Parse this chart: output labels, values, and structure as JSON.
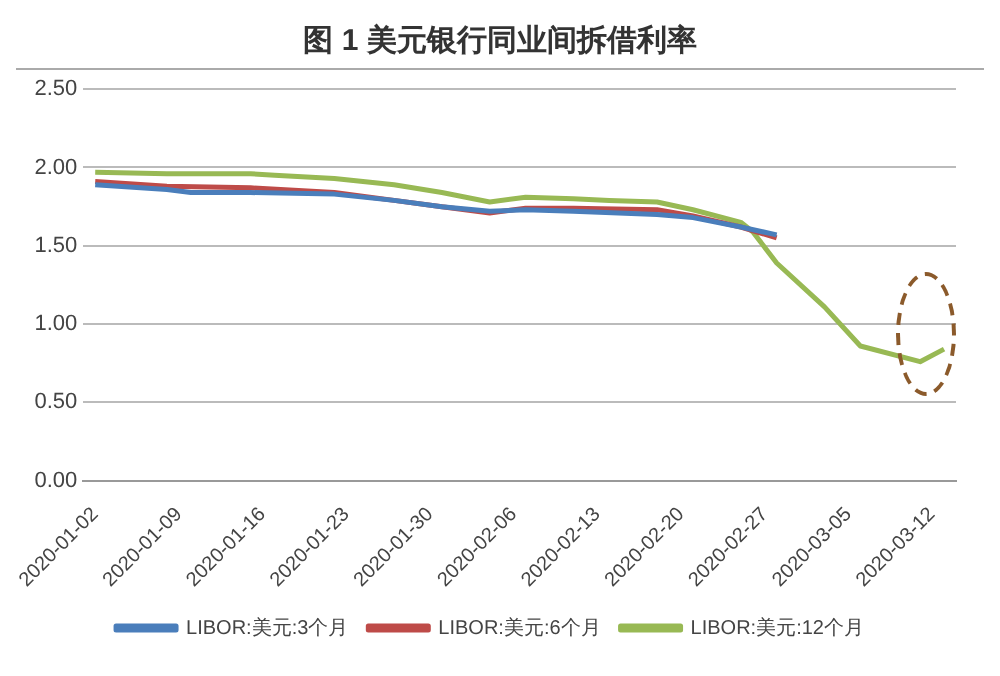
{
  "chart_data": {
    "type": "line",
    "title": "图 1  美元银行同业间拆借利率",
    "ylim": [
      0,
      2.5
    ],
    "yticks": [
      {
        "value": 0,
        "label": "0.00"
      },
      {
        "value": 0.5,
        "label": "0.50"
      },
      {
        "value": 1,
        "label": "1.00"
      },
      {
        "value": 1.5,
        "label": "1.50"
      },
      {
        "value": 2,
        "label": "2.00"
      },
      {
        "value": 2.5,
        "label": "2.50"
      }
    ],
    "xlim": [
      "2020-01-01",
      "2020-03-14"
    ],
    "xticks": [
      "2020-01-02",
      "2020-01-09",
      "2020-01-16",
      "2020-01-23",
      "2020-01-30",
      "2020-02-06",
      "2020-02-13",
      "2020-02-20",
      "2020-02-27",
      "2020-03-05",
      "2020-03-12"
    ],
    "grid": "y",
    "legend": "bottom",
    "marker": "none",
    "line_style": "solid",
    "series": [
      {
        "name": "LIBOR:美元:3个月",
        "color": "#4a7ebb",
        "x": [
          "2020-01-02",
          "2020-01-08",
          "2020-01-10",
          "2020-01-15",
          "2020-01-22",
          "2020-01-27",
          "2020-01-31",
          "2020-02-04",
          "2020-02-07",
          "2020-02-11",
          "2020-02-18",
          "2020-02-21",
          "2020-02-25",
          "2020-02-28"
        ],
        "values": [
          1.89,
          1.86,
          1.84,
          1.84,
          1.83,
          1.79,
          1.75,
          1.72,
          1.73,
          1.72,
          1.7,
          1.68,
          1.62,
          1.57
        ]
      },
      {
        "name": "LIBOR:美元:6个月",
        "color": "#be4b48",
        "x": [
          "2020-01-02",
          "2020-01-08",
          "2020-01-15",
          "2020-01-22",
          "2020-01-27",
          "2020-01-31",
          "2020-02-04",
          "2020-02-07",
          "2020-02-11",
          "2020-02-18",
          "2020-02-21",
          "2020-02-25",
          "2020-02-28"
        ],
        "values": [
          1.91,
          1.88,
          1.87,
          1.84,
          1.79,
          1.75,
          1.71,
          1.74,
          1.74,
          1.73,
          1.69,
          1.62,
          1.55
        ]
      },
      {
        "name": "LIBOR:美元:12个月",
        "color": "#98b954",
        "x": [
          "2020-01-02",
          "2020-01-08",
          "2020-01-15",
          "2020-01-17",
          "2020-01-22",
          "2020-01-27",
          "2020-01-31",
          "2020-02-04",
          "2020-02-07",
          "2020-02-11",
          "2020-02-14",
          "2020-02-18",
          "2020-02-21",
          "2020-02-25",
          "2020-02-26",
          "2020-02-28",
          "2020-03-03",
          "2020-03-06",
          "2020-03-11",
          "2020-03-13"
        ],
        "values": [
          1.97,
          1.96,
          1.96,
          1.95,
          1.93,
          1.89,
          1.84,
          1.78,
          1.81,
          1.8,
          1.79,
          1.78,
          1.73,
          1.65,
          1.59,
          1.39,
          1.11,
          0.86,
          0.76,
          0.84
        ]
      }
    ]
  }
}
